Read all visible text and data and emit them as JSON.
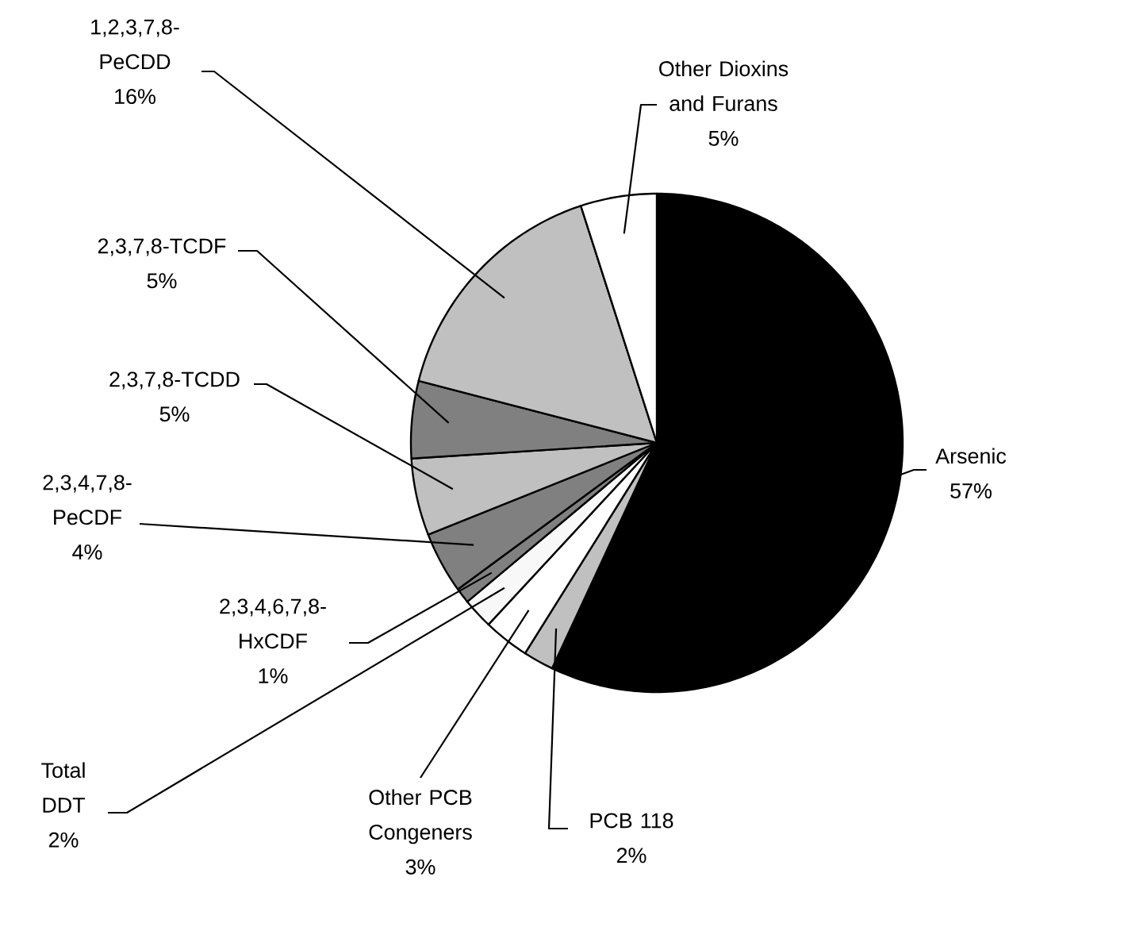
{
  "chart_data": {
    "type": "pie",
    "categories": [
      "Arsenic",
      "PCB 118",
      "Other PCB Congeners",
      "Total DDT",
      "2,3,4,6,7,8-HxCDF",
      "2,3,4,7,8-PeCDF",
      "2,3,7,8-TCDD",
      "2,3,7,8-TCDF",
      "1,2,3,7,8-PeCDD",
      "Other Dioxins and Furans"
    ],
    "values": [
      57,
      2,
      3,
      2,
      1,
      4,
      5,
      5,
      16,
      5
    ],
    "value_labels": [
      "57%",
      "2%",
      "3%",
      "2%",
      "1%",
      "4%",
      "5%",
      "5%",
      "16%",
      "5%"
    ],
    "colors": [
      "#000000",
      "#c0c0c0",
      "#ffffff",
      "#f8f8f8",
      "#808080",
      "#808080",
      "#c0c0c0",
      "#808080",
      "#c0c0c0",
      "#ffffff"
    ],
    "legend": false
  }
}
